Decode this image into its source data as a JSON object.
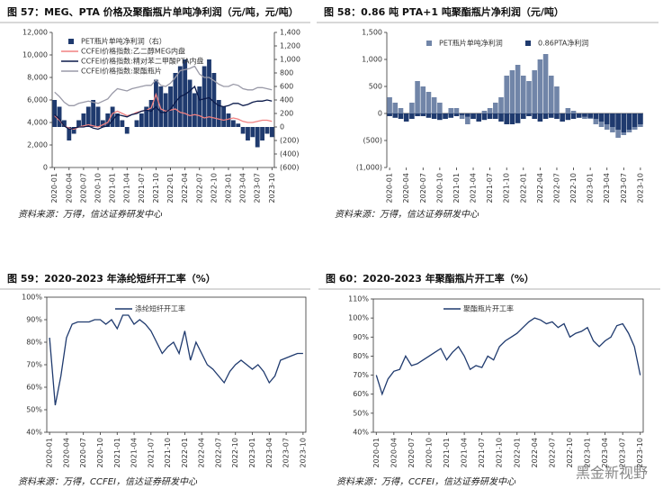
{
  "watermark": "黑金新视野",
  "chart_data": [
    {
      "type": "combo",
      "title": "图 57：MEG、PTA 价格及聚酯瓶片单吨净利润（元/吨，元/吨）",
      "source": "资料来源：万得，信达证券研发中心",
      "categories": [
        "2020-01",
        null,
        null,
        "2020-04",
        null,
        null,
        "2020-07",
        null,
        null,
        "2020-10",
        null,
        null,
        "2021-01",
        null,
        null,
        "2021-04",
        null,
        null,
        "2021-07",
        null,
        null,
        "2021-10",
        null,
        null,
        "2022-01",
        null,
        null,
        "2022-04",
        null,
        null,
        "2022-07",
        null,
        null,
        "2022-10",
        null,
        null,
        "2023-01",
        null,
        null,
        "2023-04",
        null,
        null,
        "2023-07",
        null,
        null,
        "2023-10"
      ],
      "ylim": [
        0,
        12000
      ],
      "yticks": [
        0,
        {
          "value": 2000,
          "label": "2,000"
        },
        {
          "value": 4000,
          "label": "4,000"
        },
        {
          "value": 6000,
          "label": "6,000"
        },
        {
          "value": 8000,
          "label": "8,000"
        },
        {
          "value": 10000,
          "label": "10,000"
        },
        {
          "value": 12000,
          "label": "12,000"
        }
      ],
      "y2lim": [
        -600,
        1400
      ],
      "y2ticks": [
        {
          "value": -600,
          "label": "(600)"
        },
        {
          "value": -400,
          "label": "(400)"
        },
        {
          "value": -200,
          "label": "(200)"
        },
        0,
        200,
        400,
        600,
        800,
        {
          "value": 1000,
          "label": "1,000"
        },
        {
          "value": 1200,
          "label": "1,200"
        },
        {
          "value": 1400,
          "label": "1,400"
        }
      ],
      "series": [
        {
          "name": "PET瓶片单吨净利润（右）",
          "type": "bar",
          "axis": "y2",
          "color": "#1f3a6e",
          "values": [
            400,
            300,
            100,
            -200,
            -100,
            100,
            200,
            300,
            400,
            300,
            100,
            200,
            300,
            200,
            100,
            -100,
            0,
            100,
            200,
            300,
            400,
            700,
            600,
            500,
            600,
            800,
            900,
            1000,
            700,
            500,
            600,
            900,
            1000,
            800,
            400,
            300,
            200,
            100,
            50,
            -100,
            -200,
            -150,
            -300,
            -200,
            -100,
            -150
          ]
        },
        {
          "name": "CCFEI价格指数:乙二醇MEG内盘",
          "type": "line",
          "color": "#f08080",
          "values": [
            4600,
            4200,
            3700,
            3500,
            3400,
            3600,
            3700,
            3800,
            3700,
            3600,
            3800,
            4000,
            4800,
            5000,
            4800,
            4600,
            4700,
            4900,
            5000,
            5100,
            5300,
            6500,
            5200,
            5000,
            5100,
            5200,
            4900,
            4800,
            4600,
            4700,
            4600,
            4400,
            4500,
            4400,
            4300,
            4200,
            4300,
            4400,
            4300,
            4100,
            4000,
            4000,
            4100,
            4200,
            4200,
            4100
          ]
        },
        {
          "name": "CCFEI价格指数:精对苯二甲酸PTA内盘",
          "type": "line",
          "color": "#0b1a4a",
          "values": [
            4700,
            4300,
            3700,
            3400,
            3500,
            3600,
            3600,
            3700,
            3500,
            3400,
            3600,
            3700,
            4200,
            4700,
            4600,
            4500,
            4700,
            4800,
            5000,
            5100,
            5000,
            5400,
            4900,
            4900,
            5200,
            5800,
            6300,
            6500,
            6800,
            7200,
            6000,
            6100,
            6200,
            5800,
            5500,
            5400,
            5500,
            5700,
            5700,
            5500,
            5600,
            5800,
            5900,
            5900,
            6000,
            5900
          ]
        },
        {
          "name": "CCFEI价格指数:聚酯瓶片",
          "type": "line",
          "color": "#9a9aa8",
          "values": [
            6700,
            6300,
            5800,
            5500,
            5500,
            5700,
            5800,
            5900,
            5800,
            5700,
            5900,
            6100,
            6600,
            7000,
            6900,
            6800,
            7000,
            7100,
            7200,
            7300,
            7300,
            7800,
            7300,
            7200,
            7500,
            8000,
            8600,
            8700,
            8800,
            9000,
            8300,
            8000,
            8000,
            7700,
            7400,
            7200,
            7200,
            7400,
            7300,
            7000,
            6900,
            6900,
            7100,
            7100,
            7000,
            6900
          ]
        }
      ]
    },
    {
      "type": "bar",
      "title": "图 58：0.86 吨 PTA+1 吨聚酯瓶片净利润（元/吨）",
      "source": "资料来源：万得，信达证券研发中心",
      "categories": [
        "2020-01",
        null,
        null,
        "2020-04",
        null,
        null,
        "2020-07",
        null,
        null,
        "2020-10",
        null,
        null,
        "2021-01",
        null,
        null,
        "2021-04",
        null,
        null,
        "2021-07",
        null,
        null,
        "2021-10",
        null,
        null,
        "2022-01",
        null,
        null,
        "2022-04",
        null,
        null,
        "2022-07",
        null,
        null,
        "2022-10",
        null,
        null,
        "2023-01",
        null,
        null,
        "2023-04",
        null,
        null,
        "2023-07",
        null,
        null,
        "2023-10"
      ],
      "ylim": [
        -1000,
        1500
      ],
      "yticks": [
        {
          "value": -1000,
          "label": "(1,000)"
        },
        {
          "value": -500,
          "label": "(500)"
        },
        0,
        500,
        {
          "value": 1000,
          "label": "1,000"
        },
        {
          "value": 1500,
          "label": "1,500"
        }
      ],
      "legend_layout": "horizontal",
      "series": [
        {
          "name": "PET瓶片单吨净利润",
          "type": "bar",
          "color": "#7185a8",
          "values": [
            300,
            200,
            100,
            -100,
            200,
            600,
            500,
            400,
            300,
            200,
            -100,
            100,
            100,
            -100,
            -200,
            -100,
            0,
            50,
            100,
            200,
            300,
            700,
            800,
            900,
            700,
            600,
            800,
            1000,
            1100,
            700,
            500,
            0,
            100,
            50,
            -50,
            -100,
            -100,
            -200,
            -250,
            -300,
            -350,
            -450,
            -400,
            -350,
            -300,
            -250
          ]
        },
        {
          "name": "0.86PTA净利润",
          "type": "bar",
          "color": "#1f3a6e",
          "values": [
            -50,
            -80,
            -100,
            -150,
            -100,
            -50,
            -50,
            -80,
            -100,
            -120,
            -100,
            -80,
            -50,
            -30,
            -60,
            -100,
            -150,
            -120,
            -100,
            -100,
            -150,
            -200,
            -200,
            -180,
            -100,
            -50,
            -100,
            -150,
            -100,
            -80,
            -100,
            -150,
            -120,
            -100,
            -80,
            -60,
            -80,
            -100,
            -150,
            -200,
            -250,
            -300,
            -350,
            -300,
            -250,
            -200
          ]
        }
      ]
    },
    {
      "type": "line",
      "title": "图 59：2020-2023 年涤纶短纤开工率（%）",
      "source": "资料来源：万得，CCFEI，信达证券研发中心",
      "categories": [
        "2020-01",
        null,
        null,
        "2020-04",
        null,
        null,
        "2020-07",
        null,
        null,
        "2020-10",
        null,
        null,
        "2021-01",
        null,
        null,
        "2021-04",
        null,
        null,
        "2021-07",
        null,
        null,
        "2021-10",
        null,
        null,
        "2022-01",
        null,
        null,
        "2022-04",
        null,
        null,
        "2022-07",
        null,
        null,
        "2022-10",
        null,
        null,
        "2023-01",
        null,
        null,
        "2023-04",
        null,
        null,
        "2023-07",
        null,
        null,
        "2023-10"
      ],
      "ylim": [
        40,
        100
      ],
      "yticks": [
        {
          "value": 40,
          "label": "40%"
        },
        {
          "value": 50,
          "label": "50%"
        },
        {
          "value": 60,
          "label": "60%"
        },
        {
          "value": 70,
          "label": "70%"
        },
        {
          "value": 80,
          "label": "80%"
        },
        {
          "value": 90,
          "label": "90%"
        },
        {
          "value": 100,
          "label": "100%"
        }
      ],
      "series": [
        {
          "name": "涤纶短纤开工率",
          "type": "line",
          "color": "#1f3a6e",
          "values": [
            82,
            52,
            65,
            82,
            88,
            89,
            89,
            89,
            90,
            90,
            88,
            90,
            86,
            92,
            92,
            88,
            90,
            88,
            85,
            80,
            75,
            78,
            80,
            75,
            85,
            72,
            80,
            75,
            70,
            68,
            65,
            62,
            67,
            70,
            72,
            70,
            68,
            70,
            67,
            62,
            65,
            72,
            73,
            74,
            75,
            75
          ]
        }
      ]
    },
    {
      "type": "line",
      "title": "图 60：2020-2023 年聚酯瓶片开工率（%）",
      "source": "资料来源：万得，CCFEI，信达证券研发中心",
      "categories": [
        "2020-01",
        null,
        null,
        "2020-04",
        null,
        null,
        "2020-07",
        null,
        null,
        "2020-10",
        null,
        null,
        "2021-01",
        null,
        null,
        "2021-04",
        null,
        null,
        "2021-07",
        null,
        null,
        "2021-10",
        null,
        null,
        "2022-01",
        null,
        null,
        "2022-04",
        null,
        null,
        "2022-07",
        null,
        null,
        "2022-10",
        null,
        null,
        "2023-01",
        null,
        null,
        "2023-04",
        null,
        null,
        "2023-07",
        null,
        null,
        "2023-10"
      ],
      "ylim": [
        40,
        110
      ],
      "yticks": [
        {
          "value": 40,
          "label": "40%"
        },
        {
          "value": 50,
          "label": "50%"
        },
        {
          "value": 60,
          "label": "60%"
        },
        {
          "value": 70,
          "label": "70%"
        },
        {
          "value": 80,
          "label": "80%"
        },
        {
          "value": 90,
          "label": "90%"
        },
        {
          "value": 100,
          "label": "100%"
        },
        {
          "value": 110,
          "label": "110%"
        }
      ],
      "series": [
        {
          "name": "聚酯瓶片开工率",
          "type": "line",
          "color": "#1f3a6e",
          "values": [
            70,
            60,
            68,
            72,
            73,
            80,
            75,
            76,
            78,
            80,
            82,
            84,
            78,
            82,
            85,
            80,
            73,
            75,
            74,
            80,
            78,
            85,
            88,
            90,
            92,
            95,
            98,
            100,
            99,
            97,
            98,
            95,
            97,
            90,
            92,
            93,
            95,
            88,
            85,
            88,
            90,
            96,
            97,
            92,
            85,
            70
          ]
        }
      ]
    }
  ]
}
